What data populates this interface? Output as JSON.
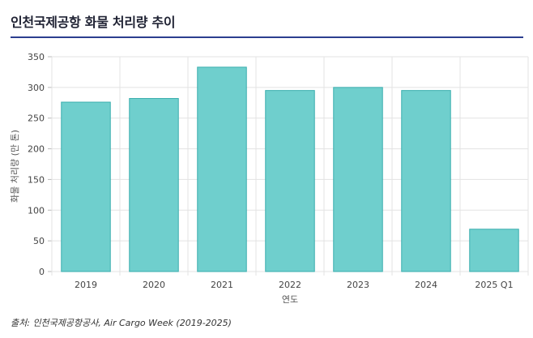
{
  "title": "인천국제공항 화물 처리량 추이",
  "source": "출처: 인천국제공항공사, Air Cargo Week (2019-2025)",
  "colors": {
    "bar_fill": "#6fcfcd",
    "bar_stroke": "#3aaeae",
    "rule": "#2c3e8f",
    "grid": "#e3e3e3"
  },
  "chart_data": {
    "type": "bar",
    "categories": [
      "2019",
      "2020",
      "2021",
      "2022",
      "2023",
      "2024",
      "2025 Q1"
    ],
    "values": [
      276,
      282,
      333,
      295,
      300,
      295,
      69
    ],
    "xlabel": "연도",
    "ylabel": "화물 처리량 (만 톤)",
    "ylim": [
      0,
      350
    ],
    "yticks": [
      0,
      50,
      100,
      150,
      200,
      250,
      300,
      350
    ],
    "grid": true
  }
}
